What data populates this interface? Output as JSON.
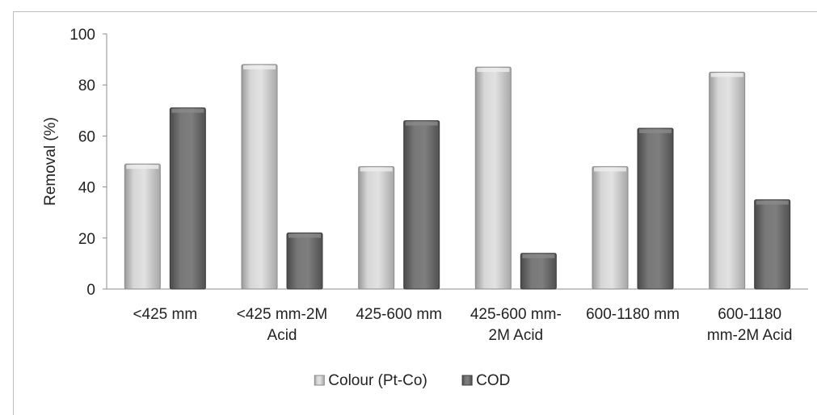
{
  "chart_data": {
    "type": "bar",
    "categories": [
      [
        "<425 mm"
      ],
      [
        "<425 mm-2M",
        "Acid"
      ],
      [
        "425-600 mm"
      ],
      [
        "425-600 mm-",
        "2M Acid"
      ],
      [
        "600-1180 mm"
      ],
      [
        "600-1180",
        "mm-2M Acid"
      ]
    ],
    "series": [
      {
        "name": "Colour (Pt-Co)",
        "values": [
          49,
          88,
          48,
          87,
          48,
          85
        ],
        "color": "#c8c8c8"
      },
      {
        "name": "COD",
        "values": [
          71,
          22,
          66,
          14,
          63,
          35
        ],
        "color": "#6f6f6f"
      }
    ],
    "ylabel": "Removal (%)",
    "ylim": [
      0,
      100
    ],
    "yticks": [
      0,
      20,
      40,
      60,
      80,
      100
    ],
    "grid": false,
    "legend_position": "bottom"
  }
}
